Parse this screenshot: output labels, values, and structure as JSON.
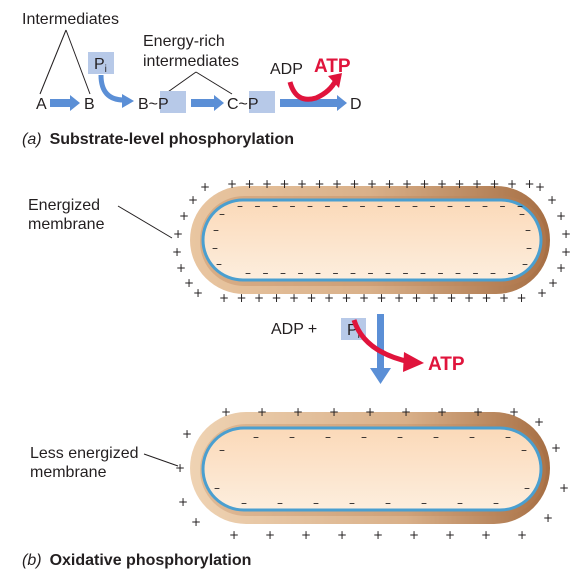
{
  "panel_a": {
    "intermediates_label": "Intermediates",
    "energy_rich_line1": "Energy-rich",
    "energy_rich_line2": "intermediates",
    "pi_label": "P",
    "pi_sub": "i",
    "adp_label": "ADP",
    "atp_label": "ATP",
    "chain": {
      "a": "A",
      "b": "B",
      "bp": "B~P",
      "cp": "C~P",
      "d": "D"
    },
    "caption_letter": "(a)",
    "caption_text": "Substrate-level phosphorylation"
  },
  "panel_b": {
    "energized_line1": "Energized",
    "energized_line2": "membrane",
    "adp_label": "ADP",
    "plus": "+",
    "pi_label": "P",
    "pi_sub": "i",
    "atp_label": "ATP",
    "less_line1": "Less energized",
    "less_line2": "membrane",
    "caption_letter": "(b)",
    "caption_text": "Oxidative phosphorylation"
  },
  "colors": {
    "arrow_blue": "#5b8fd6",
    "pi_box": "#b7c9e8",
    "atp_red": "#e0143c",
    "membrane_tan": "#c9a27c",
    "membrane_dark": "#9c6b43",
    "cytoplasm": "#fde6cf",
    "inner_line": "#4a9fd0"
  },
  "signs": {
    "plus": "+",
    "minus": "–"
  }
}
